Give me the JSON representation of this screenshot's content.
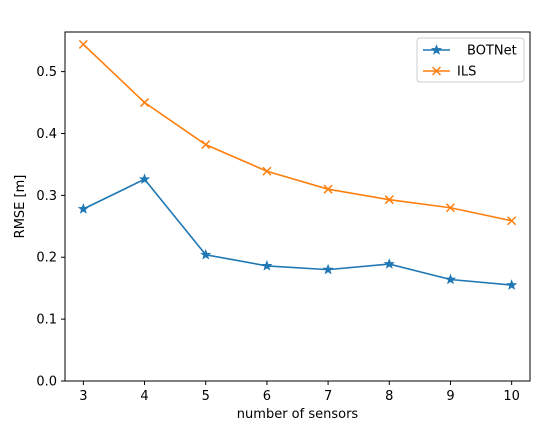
{
  "chart_data": {
    "type": "line",
    "title": "",
    "xlabel": "number of sensors",
    "ylabel": "RMSE [m]",
    "x": [
      3,
      4,
      5,
      6,
      7,
      8,
      9,
      10
    ],
    "xticks": [
      "3",
      "4",
      "5",
      "6",
      "7",
      "8",
      "9",
      "10"
    ],
    "yticks": [
      "0.0",
      "0.1",
      "0.2",
      "0.3",
      "0.4",
      "0.5"
    ],
    "ytick_values": [
      0.0,
      0.1,
      0.2,
      0.3,
      0.4,
      0.5
    ],
    "xlim": [
      2.7,
      10.3
    ],
    "ylim": [
      0.0,
      0.564
    ],
    "grid": false,
    "legend_position": "top-right",
    "series": [
      {
        "name": "BOTNet",
        "color": "#1f77b4",
        "marker": "star",
        "values": [
          0.278,
          0.326,
          0.204,
          0.186,
          0.18,
          0.189,
          0.164,
          0.155
        ]
      },
      {
        "name": "ILS",
        "color": "#ff7f0e",
        "marker": "x",
        "values": [
          0.544,
          0.45,
          0.382,
          0.339,
          0.31,
          0.293,
          0.28,
          0.259
        ]
      }
    ]
  }
}
